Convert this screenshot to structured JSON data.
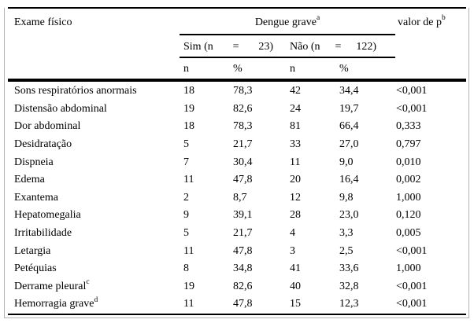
{
  "colors": {
    "background": "#ffffff",
    "text": "#000000",
    "rule": "#000000",
    "frame_border": "#b2b2b2"
  },
  "table": {
    "row_header": "Exame físico",
    "group_header": {
      "text": "Dengue grave",
      "sup": "a"
    },
    "p_header": {
      "text": "valor de p",
      "sup": "b"
    },
    "subgroups": {
      "sim": {
        "parts": [
          "Sim (n",
          "=",
          "23)"
        ]
      },
      "nao": {
        "parts": [
          "Não (n",
          "=",
          "122)"
        ]
      }
    },
    "stat_headers": [
      "n",
      "%",
      "n",
      "%"
    ],
    "rows": [
      {
        "label": "Sons respiratórios anormais",
        "sup": "",
        "sim_n": "18",
        "sim_pct": "78,3",
        "nao_n": "42",
        "nao_pct": "34,4",
        "p": "<0,001"
      },
      {
        "label": "Distensão abdominal",
        "sup": "",
        "sim_n": "19",
        "sim_pct": "82,6",
        "nao_n": "24",
        "nao_pct": "19,7",
        "p": "<0,001"
      },
      {
        "label": "Dor abdominal",
        "sup": "",
        "sim_n": "18",
        "sim_pct": "78,3",
        "nao_n": "81",
        "nao_pct": "66,4",
        "p": "0,333"
      },
      {
        "label": "Desidratação",
        "sup": "",
        "sim_n": "5",
        "sim_pct": "21,7",
        "nao_n": "33",
        "nao_pct": "27,0",
        "p": "0,797"
      },
      {
        "label": "Dispneia",
        "sup": "",
        "sim_n": "7",
        "sim_pct": "30,4",
        "nao_n": "11",
        "nao_pct": "9,0",
        "p": "0,010"
      },
      {
        "label": "Edema",
        "sup": "",
        "sim_n": "11",
        "sim_pct": "47,8",
        "nao_n": "20",
        "nao_pct": "16,4",
        "p": "0,002"
      },
      {
        "label": "Exantema",
        "sup": "",
        "sim_n": "2",
        "sim_pct": "8,7",
        "nao_n": "12",
        "nao_pct": "9,8",
        "p": "1,000"
      },
      {
        "label": "Hepatomegalia",
        "sup": "",
        "sim_n": "9",
        "sim_pct": "39,1",
        "nao_n": "28",
        "nao_pct": "23,0",
        "p": "0,120"
      },
      {
        "label": "Irritabilidade",
        "sup": "",
        "sim_n": "5",
        "sim_pct": "21,7",
        "nao_n": "4",
        "nao_pct": "3,3",
        "p": "0,005"
      },
      {
        "label": "Letargia",
        "sup": "",
        "sim_n": "11",
        "sim_pct": "47,8",
        "nao_n": "3",
        "nao_pct": "2,5",
        "p": "<0,001"
      },
      {
        "label": "Petéquias",
        "sup": "",
        "sim_n": "8",
        "sim_pct": "34,8",
        "nao_n": "41",
        "nao_pct": "33,6",
        "p": "1,000"
      },
      {
        "label": "Derrame pleural",
        "sup": "c",
        "sim_n": "19",
        "sim_pct": "82,6",
        "nao_n": "40",
        "nao_pct": "32,8",
        "p": "<0,001"
      },
      {
        "label": "Hemorragia grave",
        "sup": "d",
        "sim_n": "11",
        "sim_pct": "47,8",
        "nao_n": "15",
        "nao_pct": "12,3",
        "p": "<0,001"
      }
    ]
  }
}
